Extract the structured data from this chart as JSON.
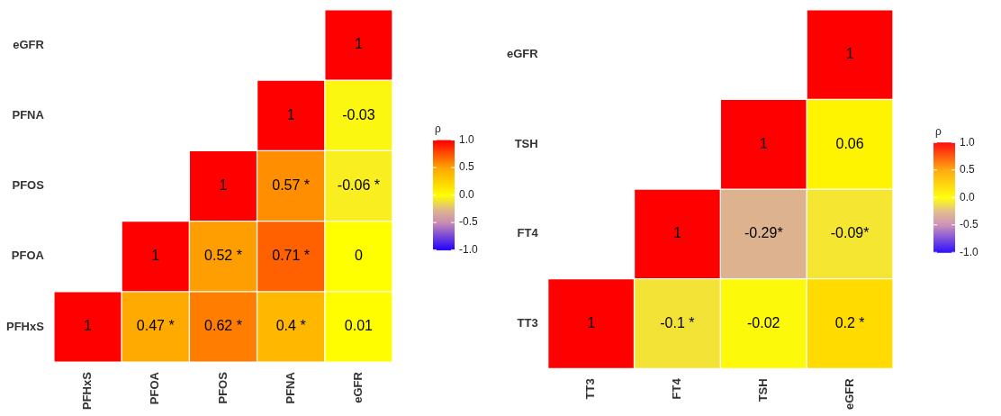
{
  "chart_data": [
    {
      "type": "heatmap",
      "categories": [
        "PFHxS",
        "PFOA",
        "PFOS",
        "PFNA",
        "eGFR"
      ],
      "y_categories": [
        "eGFR",
        "PFNA",
        "PFOS",
        "PFOA",
        "PFHxS"
      ],
      "cells": [
        [
          null,
          null,
          null,
          null,
          1
        ],
        [
          null,
          null,
          null,
          1,
          -0.03
        ],
        [
          null,
          null,
          1,
          0.57,
          -0.06
        ],
        [
          null,
          1,
          0.52,
          0.71,
          0
        ],
        [
          1,
          0.47,
          0.62,
          0.4,
          0.01
        ]
      ],
      "cell_labels": [
        [
          null,
          null,
          null,
          null,
          "1"
        ],
        [
          null,
          null,
          null,
          "1",
          "-0.03"
        ],
        [
          null,
          null,
          "1",
          "0.57 *",
          "-0.06 *"
        ],
        [
          null,
          "1",
          "0.52 *",
          "0.71 *",
          "0"
        ],
        [
          "1",
          "0.47 *",
          "0.62 *",
          "0.4 *",
          "0.01"
        ]
      ],
      "clabel": "ρ",
      "clim": [
        -1,
        1
      ],
      "cticks": [
        {
          "value": 1,
          "label": "1.0"
        },
        {
          "value": 0.5,
          "label": "0.5"
        },
        {
          "value": 0,
          "label": "0.0"
        },
        {
          "value": -0.5,
          "label": "-0.5"
        },
        {
          "value": -1,
          "label": "-1.0"
        }
      ]
    },
    {
      "type": "heatmap",
      "categories": [
        "TT3",
        "FT4",
        "TSH",
        "eGFR"
      ],
      "y_categories": [
        "eGFR",
        "TSH",
        "FT4",
        "TT3"
      ],
      "cells": [
        [
          null,
          null,
          null,
          1
        ],
        [
          null,
          null,
          1,
          0.06
        ],
        [
          null,
          1,
          -0.29,
          -0.09
        ],
        [
          1,
          -0.1,
          -0.02,
          0.2
        ]
      ],
      "cell_labels": [
        [
          null,
          null,
          null,
          "1"
        ],
        [
          null,
          null,
          "1",
          "0.06"
        ],
        [
          null,
          "1",
          "-0.29*",
          "-0.09*"
        ],
        [
          "1",
          "-0.1 *",
          "-0.02",
          "0.2 *"
        ]
      ],
      "clabel": "ρ",
      "clim": [
        -1,
        1
      ],
      "cticks": [
        {
          "value": 1,
          "label": "1.0"
        },
        {
          "value": 0.5,
          "label": "0.5"
        },
        {
          "value": 0,
          "label": "0.0"
        },
        {
          "value": -0.5,
          "label": "-0.5"
        },
        {
          "value": -1,
          "label": "-1.0"
        }
      ]
    }
  ]
}
